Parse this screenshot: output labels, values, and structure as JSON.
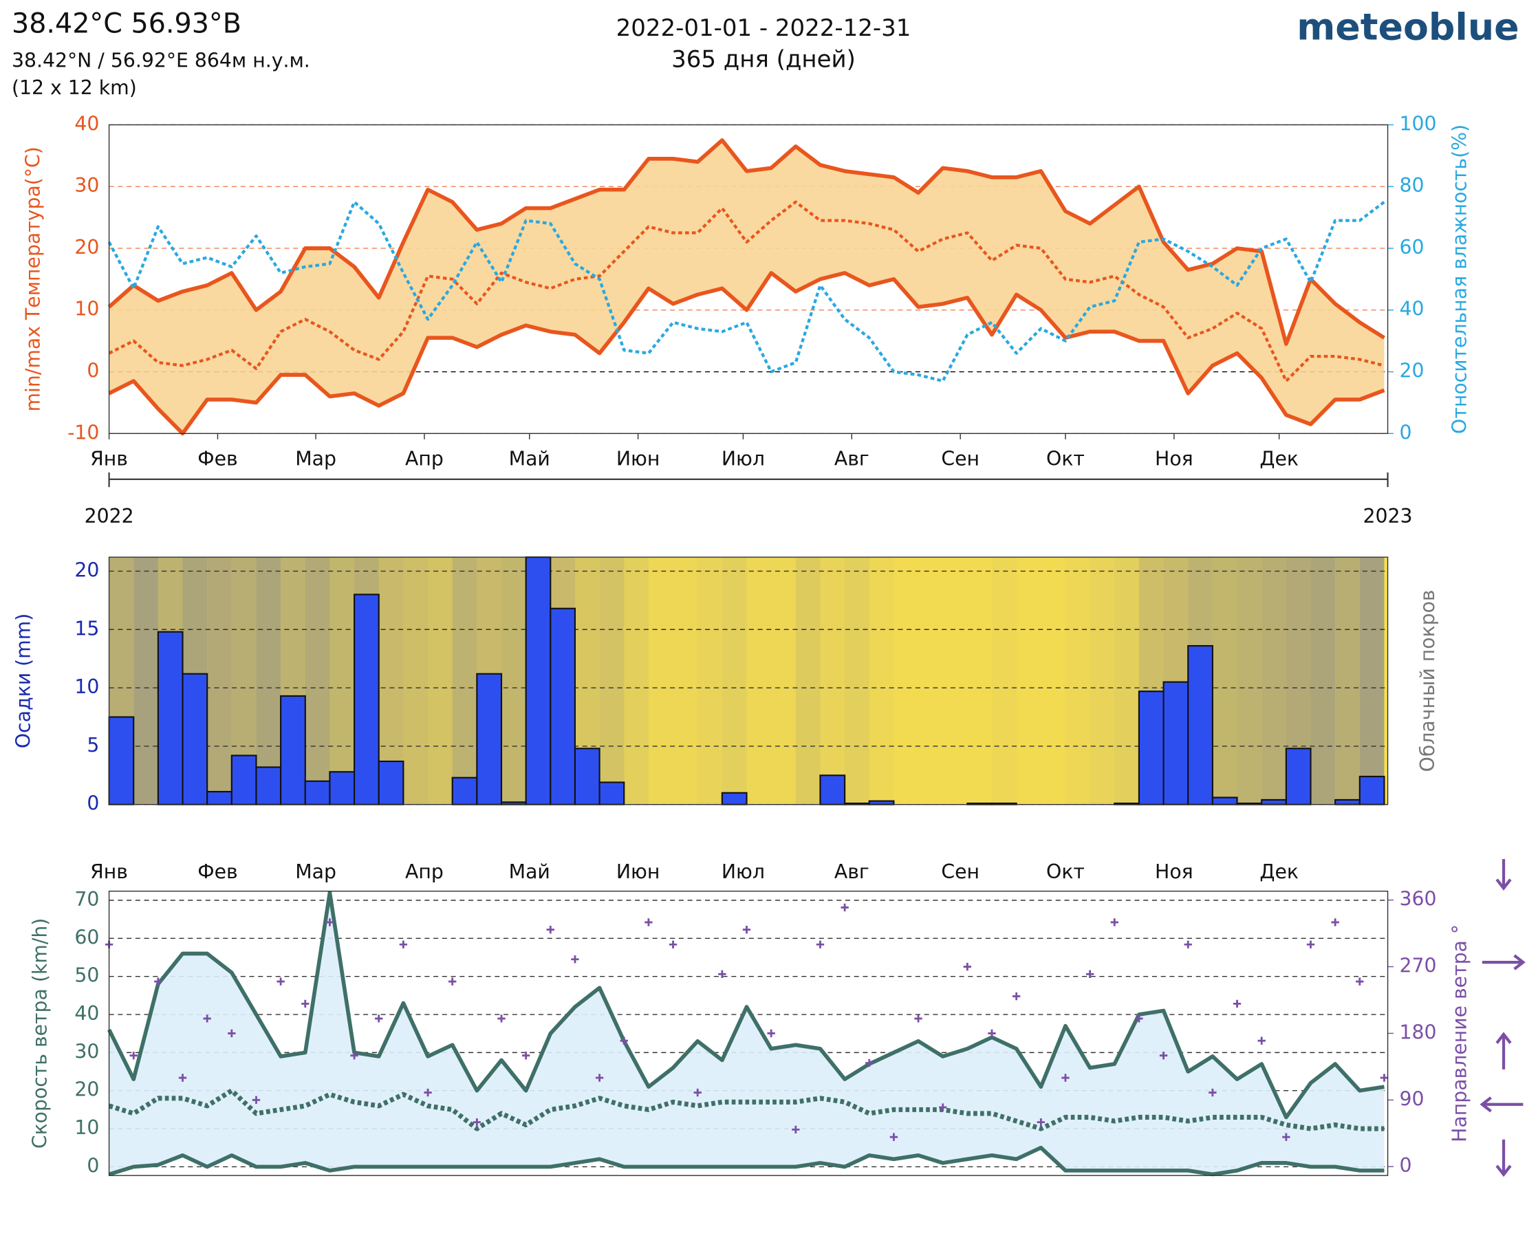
{
  "header": {
    "title": "38.42°C 56.93°В",
    "coords": "38.42°N / 56.92°E   864м н.у.м.",
    "resolution": "(12 x 12 km)",
    "period": "2022-01-01 - 2022-12-31",
    "days": "365 дня (дней)",
    "brand": "meteoblue"
  },
  "chart_data": [
    {
      "type": "line",
      "ylabel": "min/max Температура(°C)",
      "y2label": "Относительная влажность(%)",
      "x": [
        0,
        7,
        14,
        21,
        28,
        35,
        42,
        49,
        56,
        63,
        70,
        77,
        84,
        91,
        98,
        105,
        112,
        119,
        126,
        133,
        140,
        147,
        154,
        161,
        168,
        175,
        182,
        189,
        196,
        203,
        210,
        217,
        224,
        231,
        238,
        245,
        252,
        259,
        266,
        273,
        280,
        287,
        294,
        301,
        308,
        315,
        322,
        329,
        336,
        343,
        350,
        357,
        364
      ],
      "xlim": [
        0,
        365
      ],
      "xticks": [
        {
          "value": 0,
          "label": "Янв"
        },
        {
          "value": 31,
          "label": "Фев"
        },
        {
          "value": 59,
          "label": "Мар"
        },
        {
          "value": 90,
          "label": "Апр"
        },
        {
          "value": 120,
          "label": "Май"
        },
        {
          "value": 151,
          "label": "Июн"
        },
        {
          "value": 181,
          "label": "Июл"
        },
        {
          "value": 212,
          "label": "Авг"
        },
        {
          "value": 243,
          "label": "Сен"
        },
        {
          "value": 273,
          "label": "Окт"
        },
        {
          "value": 304,
          "label": "Ноя"
        },
        {
          "value": 334,
          "label": "Дек"
        }
      ],
      "year_ticks": [
        {
          "value": 0,
          "label": "2022"
        },
        {
          "value": 365,
          "label": "2023"
        }
      ],
      "ylim": [
        -10,
        40
      ],
      "yticks": [
        -10,
        0,
        10,
        20,
        30,
        40
      ],
      "y2lim": [
        0,
        100
      ],
      "y2ticks": [
        0,
        20,
        40,
        60,
        80,
        100
      ],
      "grid": true,
      "band_color": "#f8d596",
      "series": [
        {
          "color": "#e8561e",
          "style": "solid",
          "values": [
            10.5,
            14,
            11.5,
            13,
            14,
            16,
            10,
            13,
            20,
            20,
            17,
            12,
            21,
            29.5,
            27.5,
            23,
            24,
            26.5,
            26.5,
            28,
            29.5,
            29.5,
            34.5,
            34.5,
            34,
            37.5,
            32.5,
            33,
            36.5,
            33.5,
            32.5,
            32,
            31.5,
            29,
            33,
            32.5,
            31.5,
            31.5,
            32.5,
            26,
            24,
            27,
            30,
            21,
            16.5,
            17.5,
            20,
            19.5,
            4.5,
            15,
            11,
            8,
            5.5
          ]
        },
        {
          "color": "#e8561e",
          "style": "dotted",
          "values": [
            3,
            5,
            1.5,
            1,
            2,
            3.5,
            0.5,
            6.5,
            8.5,
            6.5,
            3.5,
            2,
            6.5,
            15.5,
            15,
            11,
            16,
            14.5,
            13.5,
            15,
            15.5,
            19.5,
            23.5,
            22.5,
            22.5,
            26.5,
            21,
            24.5,
            27.5,
            24.5,
            24.5,
            24,
            23,
            19.5,
            21.5,
            22.5,
            18,
            20.5,
            20,
            15,
            14.5,
            15.5,
            12.5,
            10.5,
            5.5,
            7,
            9.5,
            7,
            -1.5,
            2.5,
            2.5,
            2,
            1
          ]
        },
        {
          "color": "#e8561e",
          "style": "solid",
          "values": [
            -3.5,
            -1.5,
            -6,
            -10,
            -4.5,
            -4.5,
            -5,
            -0.5,
            -0.5,
            -4,
            -3.5,
            -5.5,
            -3.5,
            5.5,
            5.5,
            4,
            6,
            7.5,
            6.5,
            6,
            3,
            8,
            13.5,
            11,
            12.5,
            13.5,
            10,
            16,
            13,
            15,
            16,
            14,
            15,
            10.5,
            11,
            12,
            6,
            12.5,
            10,
            5.5,
            6.5,
            6.5,
            5,
            5,
            -3.5,
            1,
            3,
            -1,
            -7,
            -8.5,
            -4.5,
            -4.5,
            -3
          ]
        },
        {
          "color": "#29a8e0",
          "style": "dotted",
          "axis": "y2",
          "values": [
            62,
            47,
            67,
            55,
            57,
            54,
            64,
            52,
            54,
            55,
            75,
            68,
            52,
            37,
            48,
            62,
            49,
            69,
            68,
            55,
            50,
            27,
            26,
            36,
            34,
            33,
            36,
            20,
            23,
            48,
            37,
            31,
            20,
            19,
            17,
            32,
            36,
            26,
            34,
            30,
            41,
            43,
            62,
            63,
            59,
            54,
            48,
            60,
            63,
            49,
            69,
            69,
            75
          ]
        }
      ]
    },
    {
      "type": "histogram",
      "ylabel": "Осадки (mm)",
      "y2label": "Облачный покров",
      "bins": [
        0,
        7,
        14,
        21,
        28,
        35,
        42,
        49,
        56,
        63,
        70,
        77,
        84,
        91,
        98,
        105,
        112,
        119,
        126,
        133,
        140,
        147,
        154,
        161,
        168,
        175,
        182,
        189,
        196,
        203,
        210,
        217,
        224,
        231,
        238,
        245,
        252,
        259,
        266,
        273,
        280,
        287,
        294,
        301,
        308,
        315,
        322,
        329,
        336,
        343,
        350,
        357,
        364
      ],
      "values": [
        7.5,
        0,
        14.8,
        11.2,
        1.1,
        4.2,
        3.2,
        9.3,
        2,
        2.8,
        18,
        3.7,
        0,
        0,
        2.3,
        11.2,
        0.2,
        21.2,
        16.8,
        4.8,
        1.9,
        0,
        0,
        0,
        0,
        1,
        0,
        0,
        0,
        2.5,
        0.1,
        0.3,
        0,
        0,
        0,
        0.1,
        0.1,
        0,
        0,
        0,
        0,
        0.1,
        9.7,
        10.5,
        13.6,
        0.6,
        0.1,
        0.4,
        4.8,
        0,
        0.4,
        2.4
      ],
      "cloud_cover": [
        60,
        75,
        55,
        70,
        65,
        60,
        70,
        55,
        65,
        50,
        60,
        45,
        40,
        35,
        55,
        45,
        50,
        40,
        45,
        30,
        35,
        20,
        10,
        10,
        15,
        20,
        10,
        10,
        25,
        15,
        20,
        10,
        5,
        5,
        5,
        5,
        10,
        5,
        5,
        10,
        15,
        20,
        40,
        45,
        55,
        50,
        55,
        60,
        65,
        70,
        60,
        75
      ],
      "color": "#2e4ff0",
      "cloud_color": "#8c8c8c",
      "sun_color": "#f9e04f",
      "xlim": [
        0,
        365
      ],
      "ylim": [
        0,
        21.2
      ],
      "yticks": [
        0,
        5,
        10,
        15,
        20
      ],
      "grid": true
    },
    {
      "type": "line",
      "ylabel": "Скорость ветра (km/h)",
      "y2label": "Направление ветра °",
      "x": [
        0,
        7,
        14,
        21,
        28,
        35,
        42,
        49,
        56,
        63,
        70,
        77,
        84,
        91,
        98,
        105,
        112,
        119,
        126,
        133,
        140,
        147,
        154,
        161,
        168,
        175,
        182,
        189,
        196,
        203,
        210,
        217,
        224,
        231,
        238,
        245,
        252,
        259,
        266,
        273,
        280,
        287,
        294,
        301,
        308,
        315,
        322,
        329,
        336,
        343,
        350,
        357,
        364
      ],
      "xlim": [
        0,
        365
      ],
      "ylim": [
        -2.3,
        72.4
      ],
      "yticks": [
        0,
        10,
        20,
        30,
        40,
        50,
        60,
        70
      ],
      "y2lim": [
        -12,
        372
      ],
      "y2ticks": [
        0,
        90,
        180,
        270,
        360
      ],
      "grid": true,
      "band_color": "#ddeef9",
      "series": [
        {
          "color": "#3f7068",
          "style": "solid",
          "values": [
            36,
            23,
            48,
            56,
            56,
            51,
            40,
            29,
            30,
            72,
            30,
            29,
            43,
            29,
            32,
            20,
            28,
            20,
            35,
            42,
            47,
            33,
            21,
            26,
            33,
            28,
            42,
            31,
            32,
            31,
            23,
            27,
            30,
            33,
            29,
            31,
            34,
            31,
            21,
            37,
            26,
            27,
            40,
            41,
            25,
            29,
            23,
            27,
            13,
            22,
            27,
            20,
            21
          ]
        },
        {
          "color": "#3f7068",
          "style": "dotted",
          "values": [
            16,
            14,
            18,
            18,
            16,
            20,
            14,
            15,
            16,
            19,
            17,
            16,
            19,
            16,
            15,
            10,
            14,
            11,
            15,
            16,
            18,
            16,
            15,
            17,
            16,
            17,
            17,
            17,
            17,
            18,
            17,
            14,
            15,
            15,
            15,
            14,
            14,
            12,
            10,
            13,
            13,
            12,
            13,
            13,
            12,
            13,
            13,
            13,
            11,
            10,
            11,
            10,
            10
          ]
        },
        {
          "color": "#3f7068",
          "style": "solid",
          "values": [
            -2,
            0,
            0.5,
            3,
            0,
            3,
            0,
            0,
            1,
            -1,
            0,
            0,
            0,
            0,
            0,
            0,
            0,
            0,
            0,
            1,
            2,
            0,
            0,
            0,
            0,
            0,
            0,
            0,
            0,
            1,
            0,
            3,
            2,
            3,
            1,
            2,
            3,
            2,
            5,
            -1,
            -1,
            -1,
            -1,
            -1,
            -1,
            -2,
            -1,
            1,
            1,
            0,
            0,
            -1,
            -1
          ]
        },
        {
          "color": "#7b4fa6",
          "style": "scatter",
          "axis": "y2",
          "values": [
            300,
            150,
            250,
            120,
            200,
            180,
            90,
            250,
            220,
            330,
            150,
            200,
            300,
            100,
            250,
            60,
            200,
            150,
            320,
            280,
            120,
            170,
            330,
            300,
            100,
            260,
            320,
            180,
            50,
            300,
            350,
            140,
            40,
            200,
            80,
            270,
            180,
            230,
            60,
            120,
            260,
            330,
            200,
            150,
            300,
            100,
            220,
            170,
            40,
            300,
            330,
            250,
            120
          ]
        }
      ]
    }
  ]
}
